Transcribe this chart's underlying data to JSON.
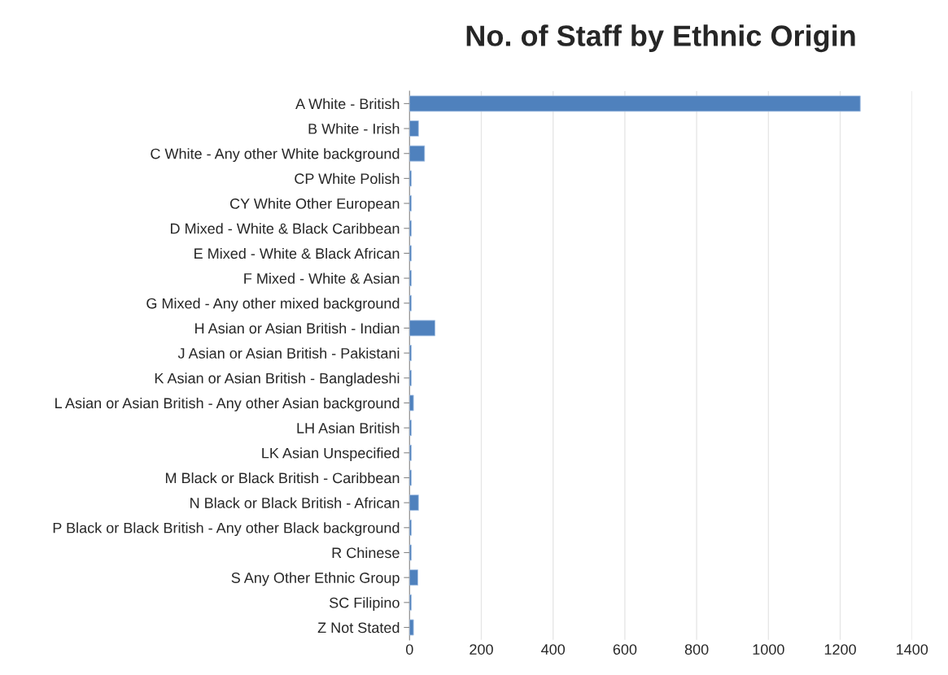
{
  "chart_data": {
    "type": "bar",
    "orientation": "horizontal",
    "title": "No. of Staff by Ethnic Origin",
    "categories": [
      "A White - British",
      "B White - Irish",
      "C White - Any other White background",
      "CP White Polish",
      "CY White Other European",
      "D Mixed - White & Black Caribbean",
      "E Mixed - White & Black African",
      "F Mixed - White & Asian",
      "G Mixed - Any other mixed background",
      "H Asian or Asian British - Indian",
      "J Asian or Asian British - Pakistani",
      "K Asian or Asian British - Bangladeshi",
      "L Asian or Asian British - Any other Asian background",
      "LH Asian British",
      "LK Asian Unspecified",
      "M Black or Black British - Caribbean",
      "N Black or Black British - African",
      "P Black or Black British - Any other Black background",
      "R Chinese",
      "S Any Other Ethnic Group",
      "SC Filipino",
      "Z Not Stated"
    ],
    "values": [
      1256,
      25,
      42,
      5,
      5,
      5,
      5,
      5,
      5,
      71,
      5,
      5,
      11,
      5,
      5,
      5,
      25,
      5,
      5,
      23,
      5,
      11
    ],
    "color": "#4f81bd",
    "xlim": [
      0,
      1400
    ],
    "xticks": [
      0,
      200,
      400,
      600,
      800,
      1000,
      1200,
      1400
    ],
    "grid": "x",
    "legend": false
  }
}
